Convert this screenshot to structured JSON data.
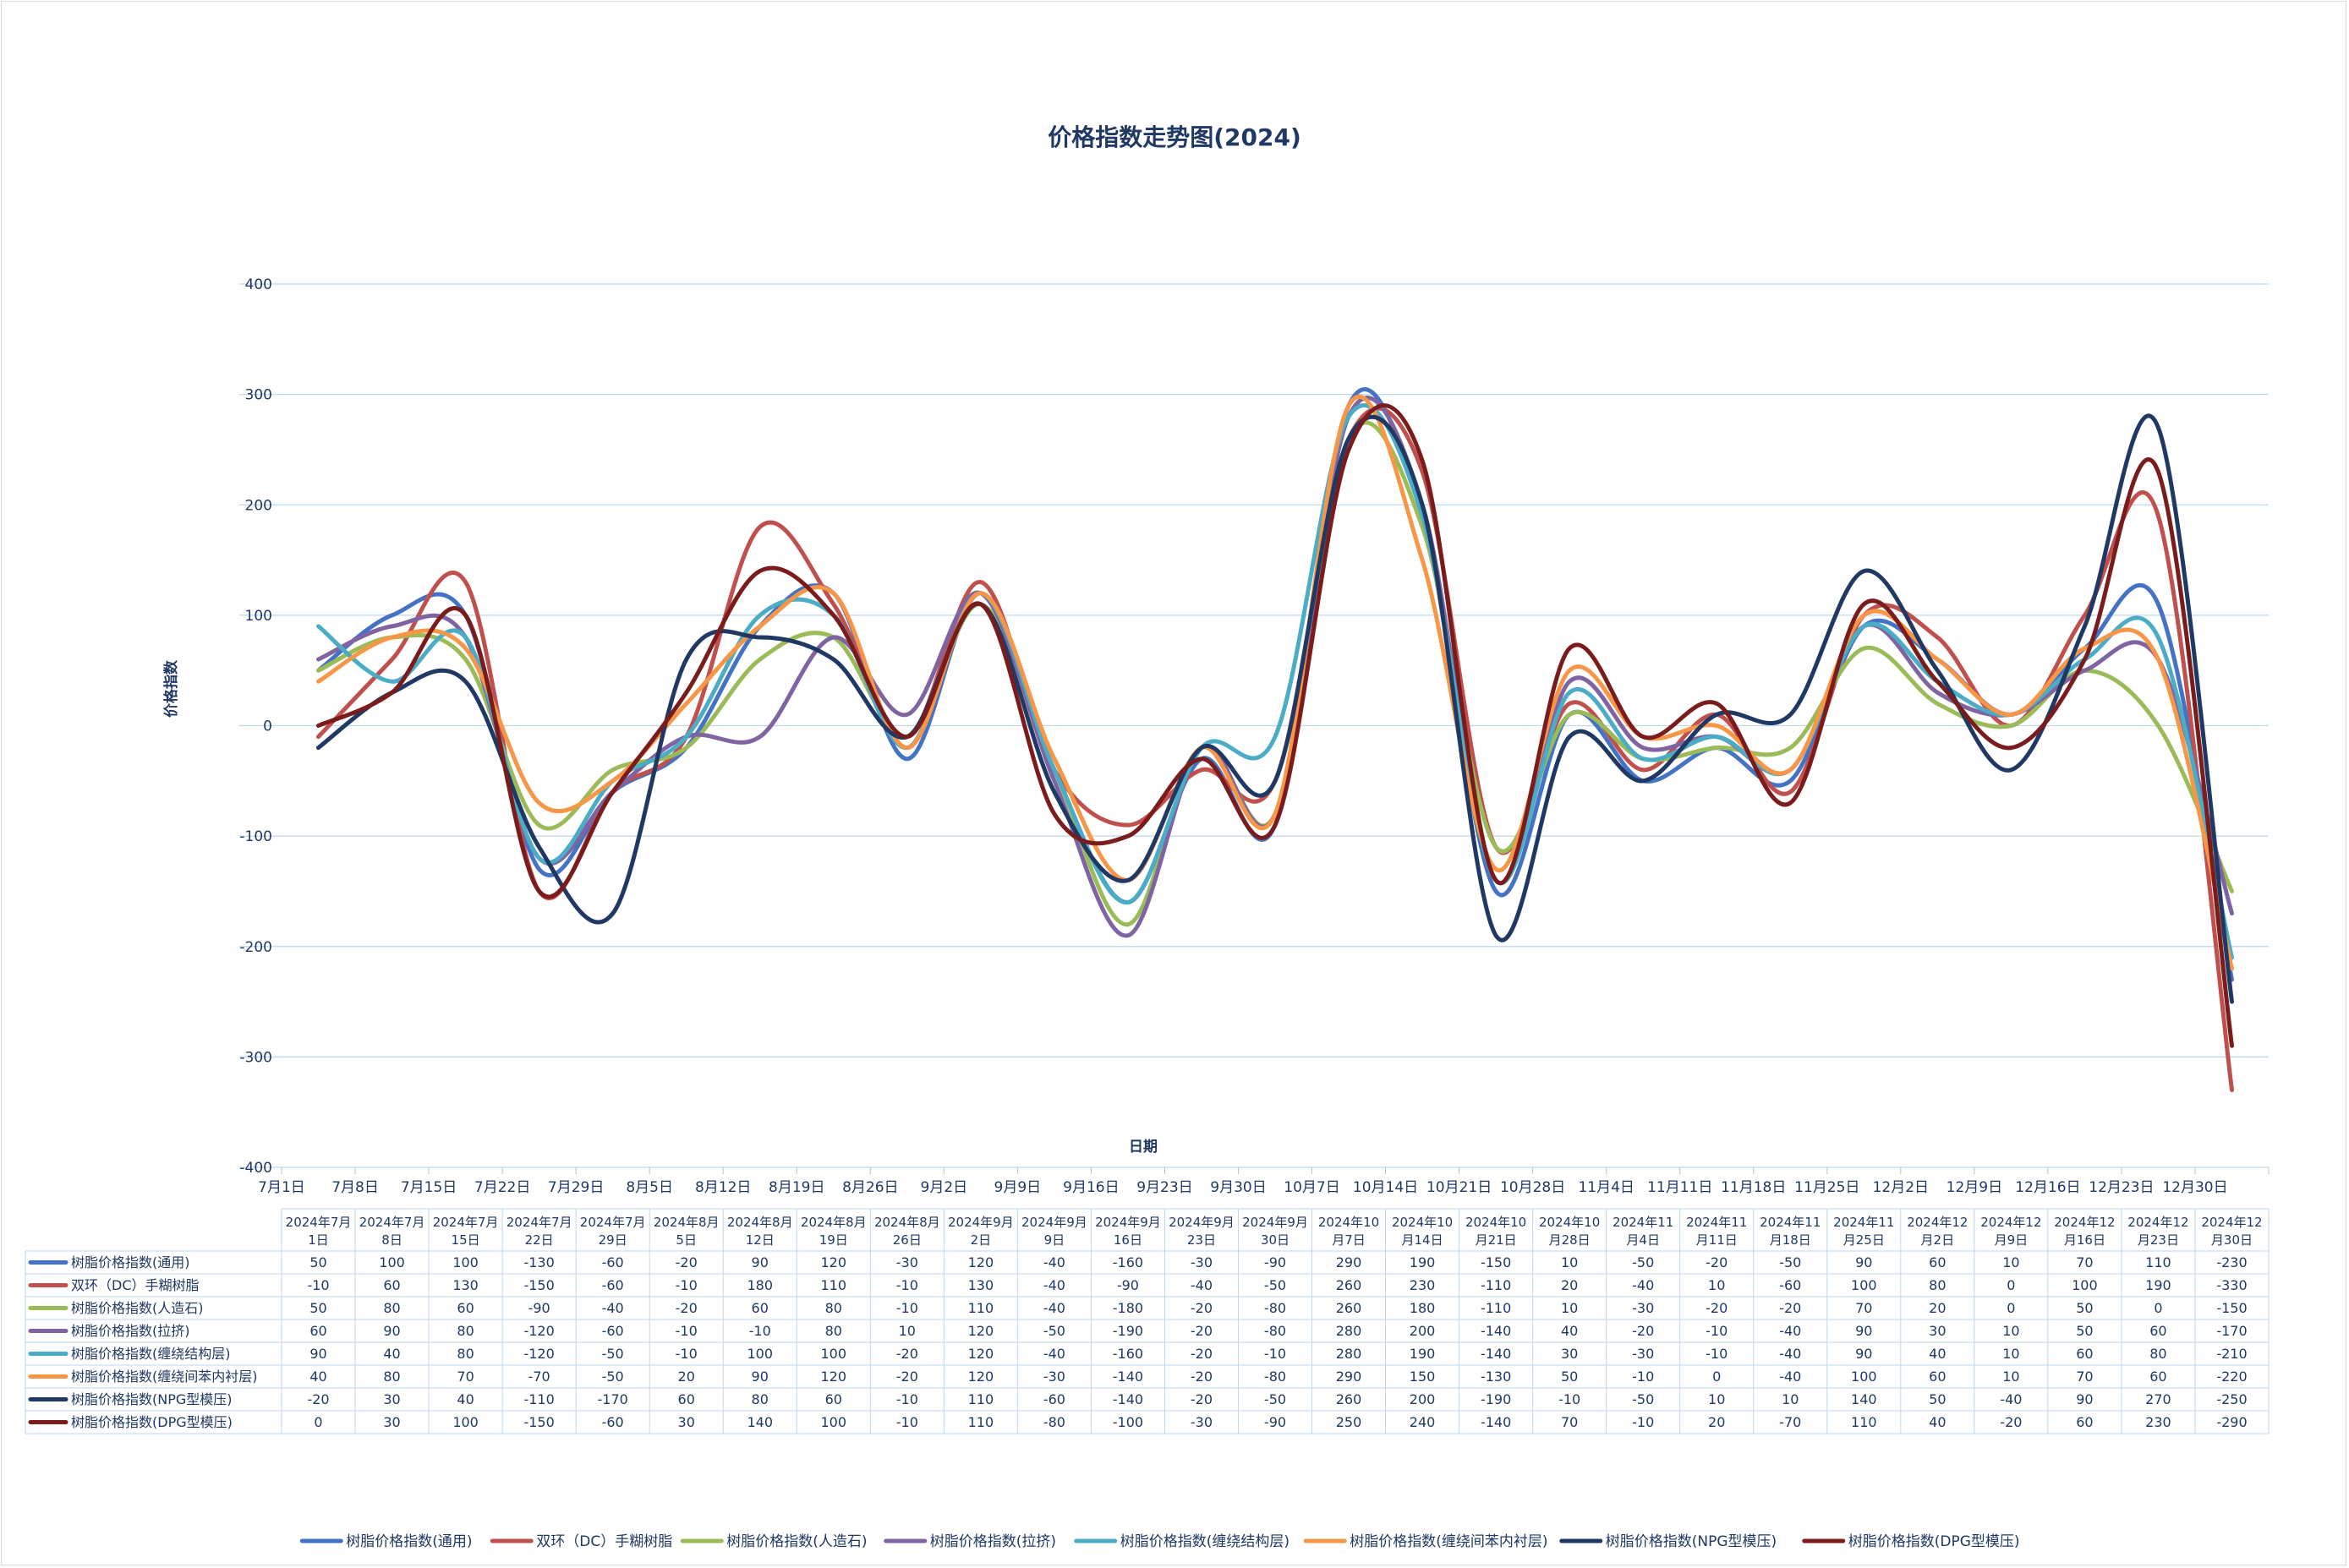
{
  "chart_data": {
    "type": "line",
    "title": "价格指数走势图(2024)",
    "xlabel": "日期",
    "ylabel": "价格指数",
    "ylim": [
      -400,
      400
    ],
    "yticks": [
      400,
      300,
      200,
      100,
      0,
      -100,
      -200,
      -300,
      -400
    ],
    "grid": true,
    "legend_position": "bottom",
    "categories": [
      "7月1日",
      "7月8日",
      "7月15日",
      "7月22日",
      "7月29日",
      "8月5日",
      "8月12日",
      "8月19日",
      "8月26日",
      "9月2日",
      "9月9日",
      "9月16日",
      "9月23日",
      "9月30日",
      "10月7日",
      "10月14日",
      "10月21日",
      "10月28日",
      "11月4日",
      "11月11日",
      "11月18日",
      "11月25日",
      "12月2日",
      "12月9日",
      "12月16日",
      "12月23日",
      "12月30日"
    ],
    "table_headers": [
      [
        "2024年7月",
        "1日"
      ],
      [
        "2024年7月",
        "8日"
      ],
      [
        "2024年7月",
        "15日"
      ],
      [
        "2024年7月",
        "22日"
      ],
      [
        "2024年7月",
        "29日"
      ],
      [
        "2024年8月",
        "5日"
      ],
      [
        "2024年8月",
        "12日"
      ],
      [
        "2024年8月",
        "19日"
      ],
      [
        "2024年8月",
        "26日"
      ],
      [
        "2024年9月",
        "2日"
      ],
      [
        "2024年9月",
        "9日"
      ],
      [
        "2024年9月",
        "16日"
      ],
      [
        "2024年9月",
        "23日"
      ],
      [
        "2024年9月",
        "30日"
      ],
      [
        "2024年10",
        "月7日"
      ],
      [
        "2024年10",
        "月14日"
      ],
      [
        "2024年10",
        "月21日"
      ],
      [
        "2024年10",
        "月28日"
      ],
      [
        "2024年11",
        "月4日"
      ],
      [
        "2024年11",
        "月11日"
      ],
      [
        "2024年11",
        "月18日"
      ],
      [
        "2024年11",
        "月25日"
      ],
      [
        "2024年12",
        "月2日"
      ],
      [
        "2024年12",
        "月9日"
      ],
      [
        "2024年12",
        "月16日"
      ],
      [
        "2024年12",
        "月23日"
      ],
      [
        "2024年12",
        "月30日"
      ]
    ],
    "series": [
      {
        "name": "树脂价格指数(通用)",
        "color": "#4472c4",
        "values": [
          50,
          100,
          100,
          -130,
          -60,
          -20,
          90,
          120,
          -30,
          120,
          -40,
          -160,
          -30,
          -90,
          290,
          190,
          -150,
          10,
          -50,
          -20,
          -50,
          90,
          60,
          10,
          70,
          110,
          -230
        ]
      },
      {
        "name": "双环（DC）手糊树脂",
        "color": "#c0504d",
        "values": [
          -10,
          60,
          130,
          -150,
          -60,
          -10,
          180,
          110,
          -10,
          130,
          -40,
          -90,
          -40,
          -50,
          260,
          230,
          -110,
          20,
          -40,
          10,
          -60,
          100,
          80,
          0,
          100,
          190,
          -330
        ]
      },
      {
        "name": "树脂价格指数(人造石)",
        "color": "#9bbb59",
        "values": [
          50,
          80,
          60,
          -90,
          -40,
          -20,
          60,
          80,
          -10,
          110,
          -40,
          -180,
          -20,
          -80,
          260,
          180,
          -110,
          10,
          -30,
          -20,
          -20,
          70,
          20,
          0,
          50,
          0,
          -150
        ]
      },
      {
        "name": "树脂价格指数(拉挤)",
        "color": "#8064a2",
        "values": [
          60,
          90,
          80,
          -120,
          -60,
          -10,
          -10,
          80,
          10,
          120,
          -50,
          -190,
          -20,
          -80,
          280,
          200,
          -140,
          40,
          -20,
          -10,
          -40,
          90,
          30,
          10,
          50,
          60,
          -170
        ]
      },
      {
        "name": "树脂价格指数(缠绕结构层)",
        "color": "#4bacc6",
        "values": [
          90,
          40,
          80,
          -120,
          -50,
          -10,
          100,
          100,
          -20,
          120,
          -40,
          -160,
          -20,
          -10,
          280,
          190,
          -140,
          30,
          -30,
          -10,
          -40,
          90,
          40,
          10,
          60,
          80,
          -210
        ]
      },
      {
        "name": "树脂价格指数(缠绕间苯内衬层)",
        "color": "#f79646",
        "values": [
          40,
          80,
          70,
          -70,
          -50,
          20,
          90,
          120,
          -20,
          120,
          -30,
          -140,
          -20,
          -80,
          290,
          150,
          -130,
          50,
          -10,
          0,
          -40,
          100,
          60,
          10,
          70,
          60,
          -220
        ]
      },
      {
        "name": "树脂价格指数(NPG型模压)",
        "color": "#1f3864",
        "values": [
          -20,
          30,
          40,
          -110,
          -170,
          60,
          80,
          60,
          -10,
          110,
          -60,
          -140,
          -20,
          -50,
          260,
          200,
          -190,
          -10,
          -50,
          10,
          10,
          140,
          50,
          -40,
          90,
          270,
          -250
        ]
      },
      {
        "name": "树脂价格指数(DPG型模压)",
        "color": "#7b1c1c",
        "values": [
          0,
          30,
          100,
          -150,
          -60,
          30,
          140,
          100,
          -10,
          110,
          -80,
          -100,
          -30,
          -90,
          250,
          240,
          -140,
          70,
          -10,
          20,
          -70,
          110,
          40,
          -20,
          60,
          230,
          -290
        ]
      }
    ]
  }
}
